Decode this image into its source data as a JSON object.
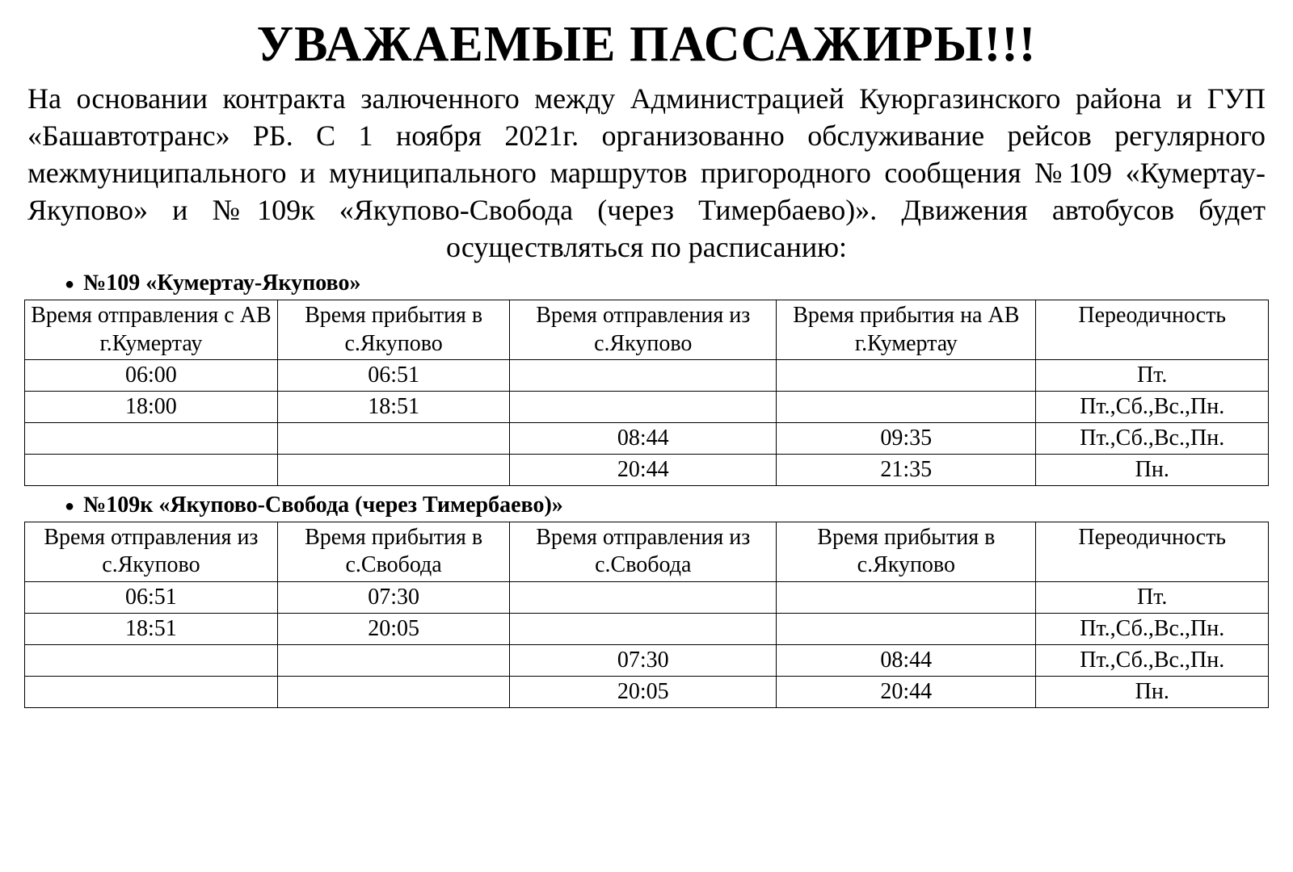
{
  "title": "УВАЖАЕМЫЕ ПАССАЖИРЫ!!!",
  "intro": "На основании контракта залюченного между Администрацией Куюргазинского района и ГУП «Башавтотранс» РБ. С 1 ноября 2021г. организованно обслуживание рейсов регулярного межмуниципального и муниципального маршрутов пригородного сообщения №109 «Кумертау-Якупово» и №109к «Якупово-Свобода (через Тимербаево)». Движения автобусов будет осуществляться по расписанию:",
  "route1": {
    "heading": "№109 «Кумертау-Якупово»",
    "headers": {
      "c1": "Время отправления с АВ г.Кумертау",
      "c2": "Время прибытия в с.Якупово",
      "c3": "Время отправления из с.Якупово",
      "c4": "Время прибытия на АВ г.Кумертау",
      "c5": "Переодичность"
    },
    "rows": [
      {
        "c1": "06:00",
        "c2": "06:51",
        "c3": "",
        "c4": "",
        "c5": "Пт."
      },
      {
        "c1": "18:00",
        "c2": "18:51",
        "c3": "",
        "c4": "",
        "c5": "Пт.,Сб.,Вс.,Пн."
      },
      {
        "c1": "",
        "c2": "",
        "c3": "08:44",
        "c4": "09:35",
        "c5": "Пт.,Сб.,Вс.,Пн."
      },
      {
        "c1": "",
        "c2": "",
        "c3": "20:44",
        "c4": "21:35",
        "c5": "Пн."
      }
    ]
  },
  "route2": {
    "heading": "№109к «Якупово-Свобода (через Тимербаево)»",
    "headers": {
      "c1": "Время отправления из с.Якупово",
      "c2": "Время прибытия в с.Свобода",
      "c3": "Время отправления из с.Свобода",
      "c4": "Время прибытия в с.Якупово",
      "c5": "Переодичность"
    },
    "rows": [
      {
        "c1": "06:51",
        "c2": "07:30",
        "c3": "",
        "c4": "",
        "c5": "Пт."
      },
      {
        "c1": "18:51",
        "c2": "20:05",
        "c3": "",
        "c4": "",
        "c5": "Пт.,Сб.,Вс.,Пн."
      },
      {
        "c1": "",
        "c2": "",
        "c3": "07:30",
        "c4": "08:44",
        "c5": "Пт.,Сб.,Вс.,Пн."
      },
      {
        "c1": "",
        "c2": "",
        "c3": "20:05",
        "c4": "20:44",
        "c5": "Пн."
      }
    ]
  }
}
